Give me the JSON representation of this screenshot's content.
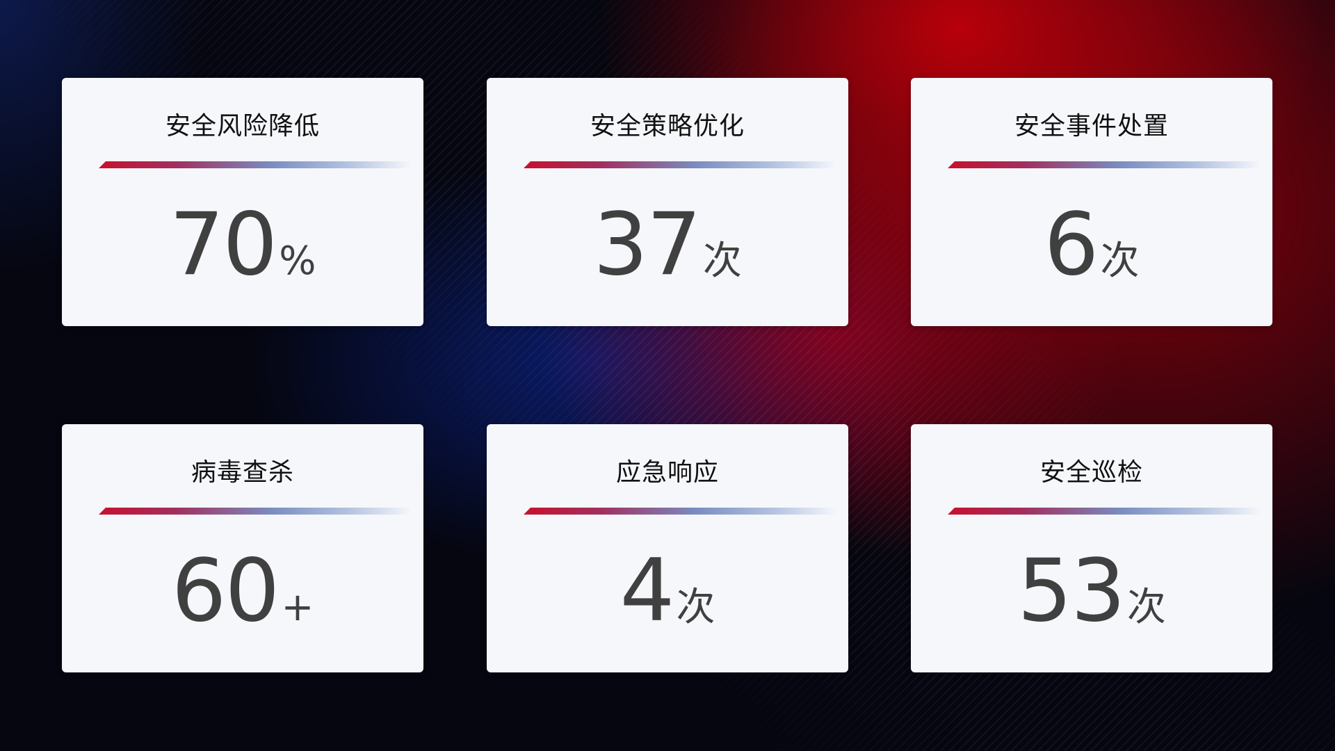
{
  "cards": [
    {
      "title": "安全风险降低",
      "value": "70",
      "unit": "%"
    },
    {
      "title": "安全策略优化",
      "value": "37",
      "unit": "次"
    },
    {
      "title": "安全事件处置",
      "value": "6",
      "unit": "次"
    },
    {
      "title": "病毒查杀",
      "value": "60",
      "unit": "+"
    },
    {
      "title": "应急响应",
      "value": "4",
      "unit": "次"
    },
    {
      "title": "安全巡检",
      "value": "53",
      "unit": "次"
    }
  ],
  "colors": {
    "accent_red": "#c8102e",
    "accent_blue": "#7a8cc0",
    "card_bg": "#f5f7fb",
    "value_text": "#404040"
  }
}
